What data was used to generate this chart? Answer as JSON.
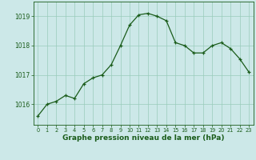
{
  "x": [
    0,
    1,
    2,
    3,
    4,
    5,
    6,
    7,
    8,
    9,
    10,
    11,
    12,
    13,
    14,
    15,
    16,
    17,
    18,
    19,
    20,
    21,
    22,
    23
  ],
  "y": [
    1015.6,
    1016.0,
    1016.1,
    1016.3,
    1016.2,
    1016.7,
    1016.9,
    1017.0,
    1017.35,
    1018.0,
    1018.7,
    1019.05,
    1019.1,
    1019.0,
    1018.85,
    1018.1,
    1018.0,
    1017.75,
    1017.75,
    1018.0,
    1018.1,
    1017.9,
    1017.55,
    1017.1
  ],
  "line_color": "#1a5c1a",
  "marker": "+",
  "marker_color": "#1a5c1a",
  "bg_color": "#cce8e8",
  "grid_color": "#99ccbb",
  "axis_color": "#1a5c1a",
  "xlabel": "Graphe pression niveau de la mer (hPa)",
  "xlabel_fontsize": 6.5,
  "yticks": [
    1016,
    1017,
    1018,
    1019
  ],
  "xticks": [
    0,
    1,
    2,
    3,
    4,
    5,
    6,
    7,
    8,
    9,
    10,
    11,
    12,
    13,
    14,
    15,
    16,
    17,
    18,
    19,
    20,
    21,
    22,
    23
  ],
  "ylim": [
    1015.3,
    1019.5
  ],
  "xlim": [
    -0.5,
    23.5
  ]
}
